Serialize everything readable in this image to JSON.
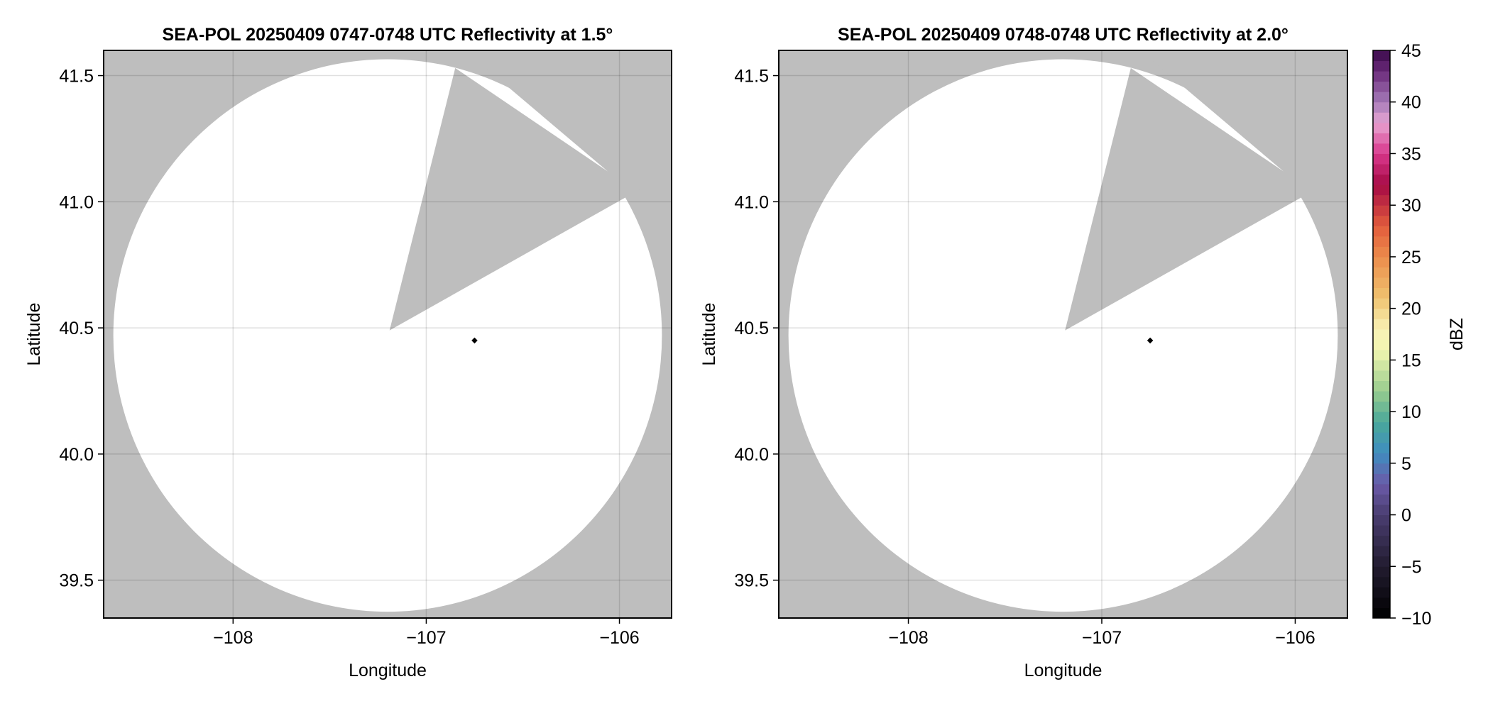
{
  "chart_data": [
    {
      "type": "heatmap",
      "title": "SEA-POL 20250409 0747-0748 UTC Reflectivity at 1.5°",
      "xlabel": "Longitude",
      "ylabel": "Latitude",
      "xlim": [
        -108.67,
        -105.73
      ],
      "ylim": [
        39.35,
        41.6
      ],
      "xticks": [
        -108,
        -107,
        -106
      ],
      "xtick_labels": [
        "−108",
        "−107",
        "−106"
      ],
      "yticks": [
        39.5,
        40.0,
        40.5,
        41.0,
        41.5
      ],
      "ytick_labels": [
        "39.5",
        "40.0",
        "40.5",
        "41.0",
        "41.5"
      ],
      "grid": true,
      "background_color": "#bebebe",
      "coverage": {
        "center": [
          -107.2,
          40.47
        ],
        "radius_lon": 1.42,
        "radius_lat": 1.095,
        "fill": "#ffffff"
      },
      "blocked_sector": [
        [
          -107.19,
          40.49
        ],
        [
          -106.85,
          41.53
        ],
        [
          -106.06,
          41.12
        ]
      ],
      "radar_site": [
        -106.75,
        40.45
      ]
    },
    {
      "type": "heatmap",
      "title": "SEA-POL 20250409 0748-0748 UTC Reflectivity at 2.0°",
      "xlabel": "Longitude",
      "ylabel": "Latitude",
      "xlim": [
        -108.67,
        -105.73
      ],
      "ylim": [
        39.35,
        41.6
      ],
      "xticks": [
        -108,
        -107,
        -106
      ],
      "xtick_labels": [
        "−108",
        "−107",
        "−106"
      ],
      "yticks": [
        39.5,
        40.0,
        40.5,
        41.0,
        41.5
      ],
      "ytick_labels": [
        "39.5",
        "40.0",
        "40.5",
        "41.0",
        "41.5"
      ],
      "grid": true,
      "background_color": "#bebebe",
      "coverage": {
        "center": [
          -107.2,
          40.47
        ],
        "radius_lon": 1.42,
        "radius_lat": 1.095,
        "fill": "#ffffff"
      },
      "blocked_sector": [
        [
          -107.19,
          40.49
        ],
        [
          -106.85,
          41.53
        ],
        [
          -106.06,
          41.12
        ]
      ],
      "radar_site": [
        -106.75,
        40.45
      ]
    }
  ],
  "colorbar": {
    "label": "dBZ",
    "range": [
      -10,
      45
    ],
    "step": 1,
    "ticks": [
      -10,
      -5,
      0,
      5,
      10,
      15,
      20,
      25,
      30,
      35,
      40,
      45
    ],
    "tick_labels": [
      "−10",
      "−5",
      "0",
      "5",
      "10",
      "15",
      "20",
      "25",
      "30",
      "35",
      "40",
      "45"
    ],
    "colormap_stops": [
      [
        -10,
        "#000000"
      ],
      [
        -5,
        "#221c30"
      ],
      [
        0,
        "#4a3d70"
      ],
      [
        3,
        "#6a5aa8"
      ],
      [
        6,
        "#3f8dc0"
      ],
      [
        9,
        "#4aa89a"
      ],
      [
        12,
        "#98cc8e"
      ],
      [
        16,
        "#f2f6b0"
      ],
      [
        18,
        "#f8f2b6"
      ],
      [
        21,
        "#efc370"
      ],
      [
        25,
        "#ec8c4b"
      ],
      [
        28,
        "#e25c3c"
      ],
      [
        32,
        "#a50a45"
      ],
      [
        35,
        "#d8388c"
      ],
      [
        38,
        "#e8a4d2"
      ],
      [
        40,
        "#a57ab8"
      ],
      [
        43,
        "#6a2a7a"
      ],
      [
        45,
        "#3a0a4a"
      ]
    ]
  }
}
